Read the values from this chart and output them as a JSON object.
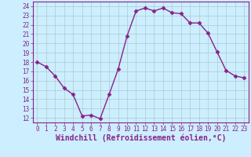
{
  "x": [
    0,
    1,
    2,
    3,
    4,
    5,
    6,
    7,
    8,
    9,
    10,
    11,
    12,
    13,
    14,
    15,
    16,
    17,
    18,
    19,
    20,
    21,
    22,
    23
  ],
  "y": [
    18,
    17.5,
    16.5,
    15.2,
    14.5,
    12.2,
    12.3,
    11.9,
    14.5,
    17.2,
    20.8,
    23.5,
    23.8,
    23.5,
    23.8,
    23.3,
    23.2,
    22.2,
    22.2,
    21.1,
    19.1,
    17.1,
    16.5,
    16.3
  ],
  "line_color": "#882288",
  "marker": "D",
  "marker_size": 2.5,
  "bg_color": "#cceeff",
  "grid_color": "#aacccc",
  "xlabel": "Windchill (Refroidissement éolien,°C)",
  "xlim": [
    -0.5,
    23.5
  ],
  "ylim": [
    11.5,
    24.5
  ],
  "yticks": [
    12,
    13,
    14,
    15,
    16,
    17,
    18,
    19,
    20,
    21,
    22,
    23,
    24
  ],
  "xticks": [
    0,
    1,
    2,
    3,
    4,
    5,
    6,
    7,
    8,
    9,
    10,
    11,
    12,
    13,
    14,
    15,
    16,
    17,
    18,
    19,
    20,
    21,
    22,
    23
  ],
  "tick_fontsize": 5.5,
  "xlabel_fontsize": 7.0,
  "line_width": 1.0
}
